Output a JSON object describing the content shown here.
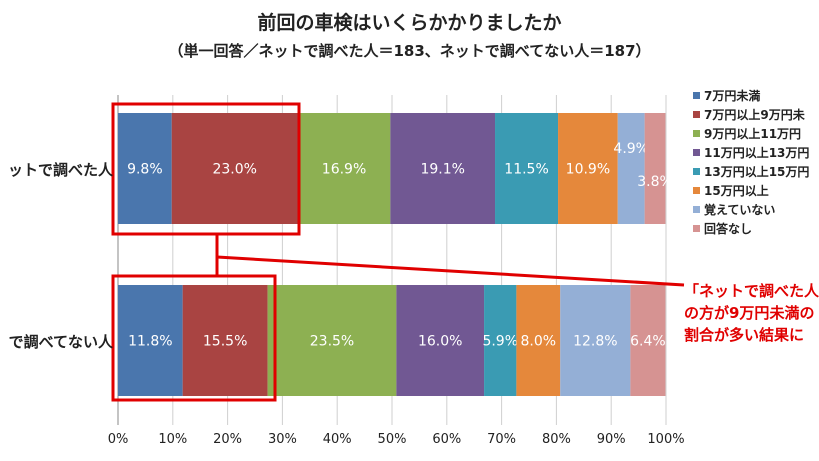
{
  "chart_data": {
    "type": "bar",
    "orientation": "horizontal-stacked-100",
    "title": "前回の車検はいくらかかりましたか",
    "subtitle": "（単一回答／ネットで調べた人＝183、ネットで調べてない人＝187）",
    "categories": [
      "ットで調べた人",
      "で調べてない人"
    ],
    "series": [
      {
        "name": "7万円未満",
        "color": "#4a76ad",
        "values": [
          9.8,
          11.8
        ]
      },
      {
        "name": "7万円以上9万円未",
        "color": "#a94442",
        "values": [
          23.0,
          15.5
        ]
      },
      {
        "name": "9万円以上11万円",
        "color": "#8db052",
        "values": [
          16.9,
          23.5
        ]
      },
      {
        "name": "11万円以上13万円",
        "color": "#715893",
        "values": [
          19.1,
          16.0
        ]
      },
      {
        "name": "13万円以上15万円",
        "color": "#3a9bb3",
        "values": [
          11.5,
          5.9
        ]
      },
      {
        "name": "15万円以上",
        "color": "#e5883b",
        "values": [
          10.9,
          8.0
        ]
      },
      {
        "name": "覚えていない",
        "color": "#94afd6",
        "values": [
          4.9,
          12.8
        ]
      },
      {
        "name": "回答なし",
        "color": "#d69392",
        "values": [
          3.8,
          6.4
        ]
      }
    ],
    "xlim": [
      0,
      100
    ],
    "xticks": [
      "0%",
      "10%",
      "20%",
      "30%",
      "40%",
      "50%",
      "60%",
      "70%",
      "80%",
      "90%",
      "100%"
    ],
    "grid": true,
    "legend": "right"
  },
  "annotation": {
    "lines": [
      "「ネットで調べた人",
      "の方が9万円未満の",
      "割合が多い結果に"
    ],
    "color": "#e00000"
  }
}
